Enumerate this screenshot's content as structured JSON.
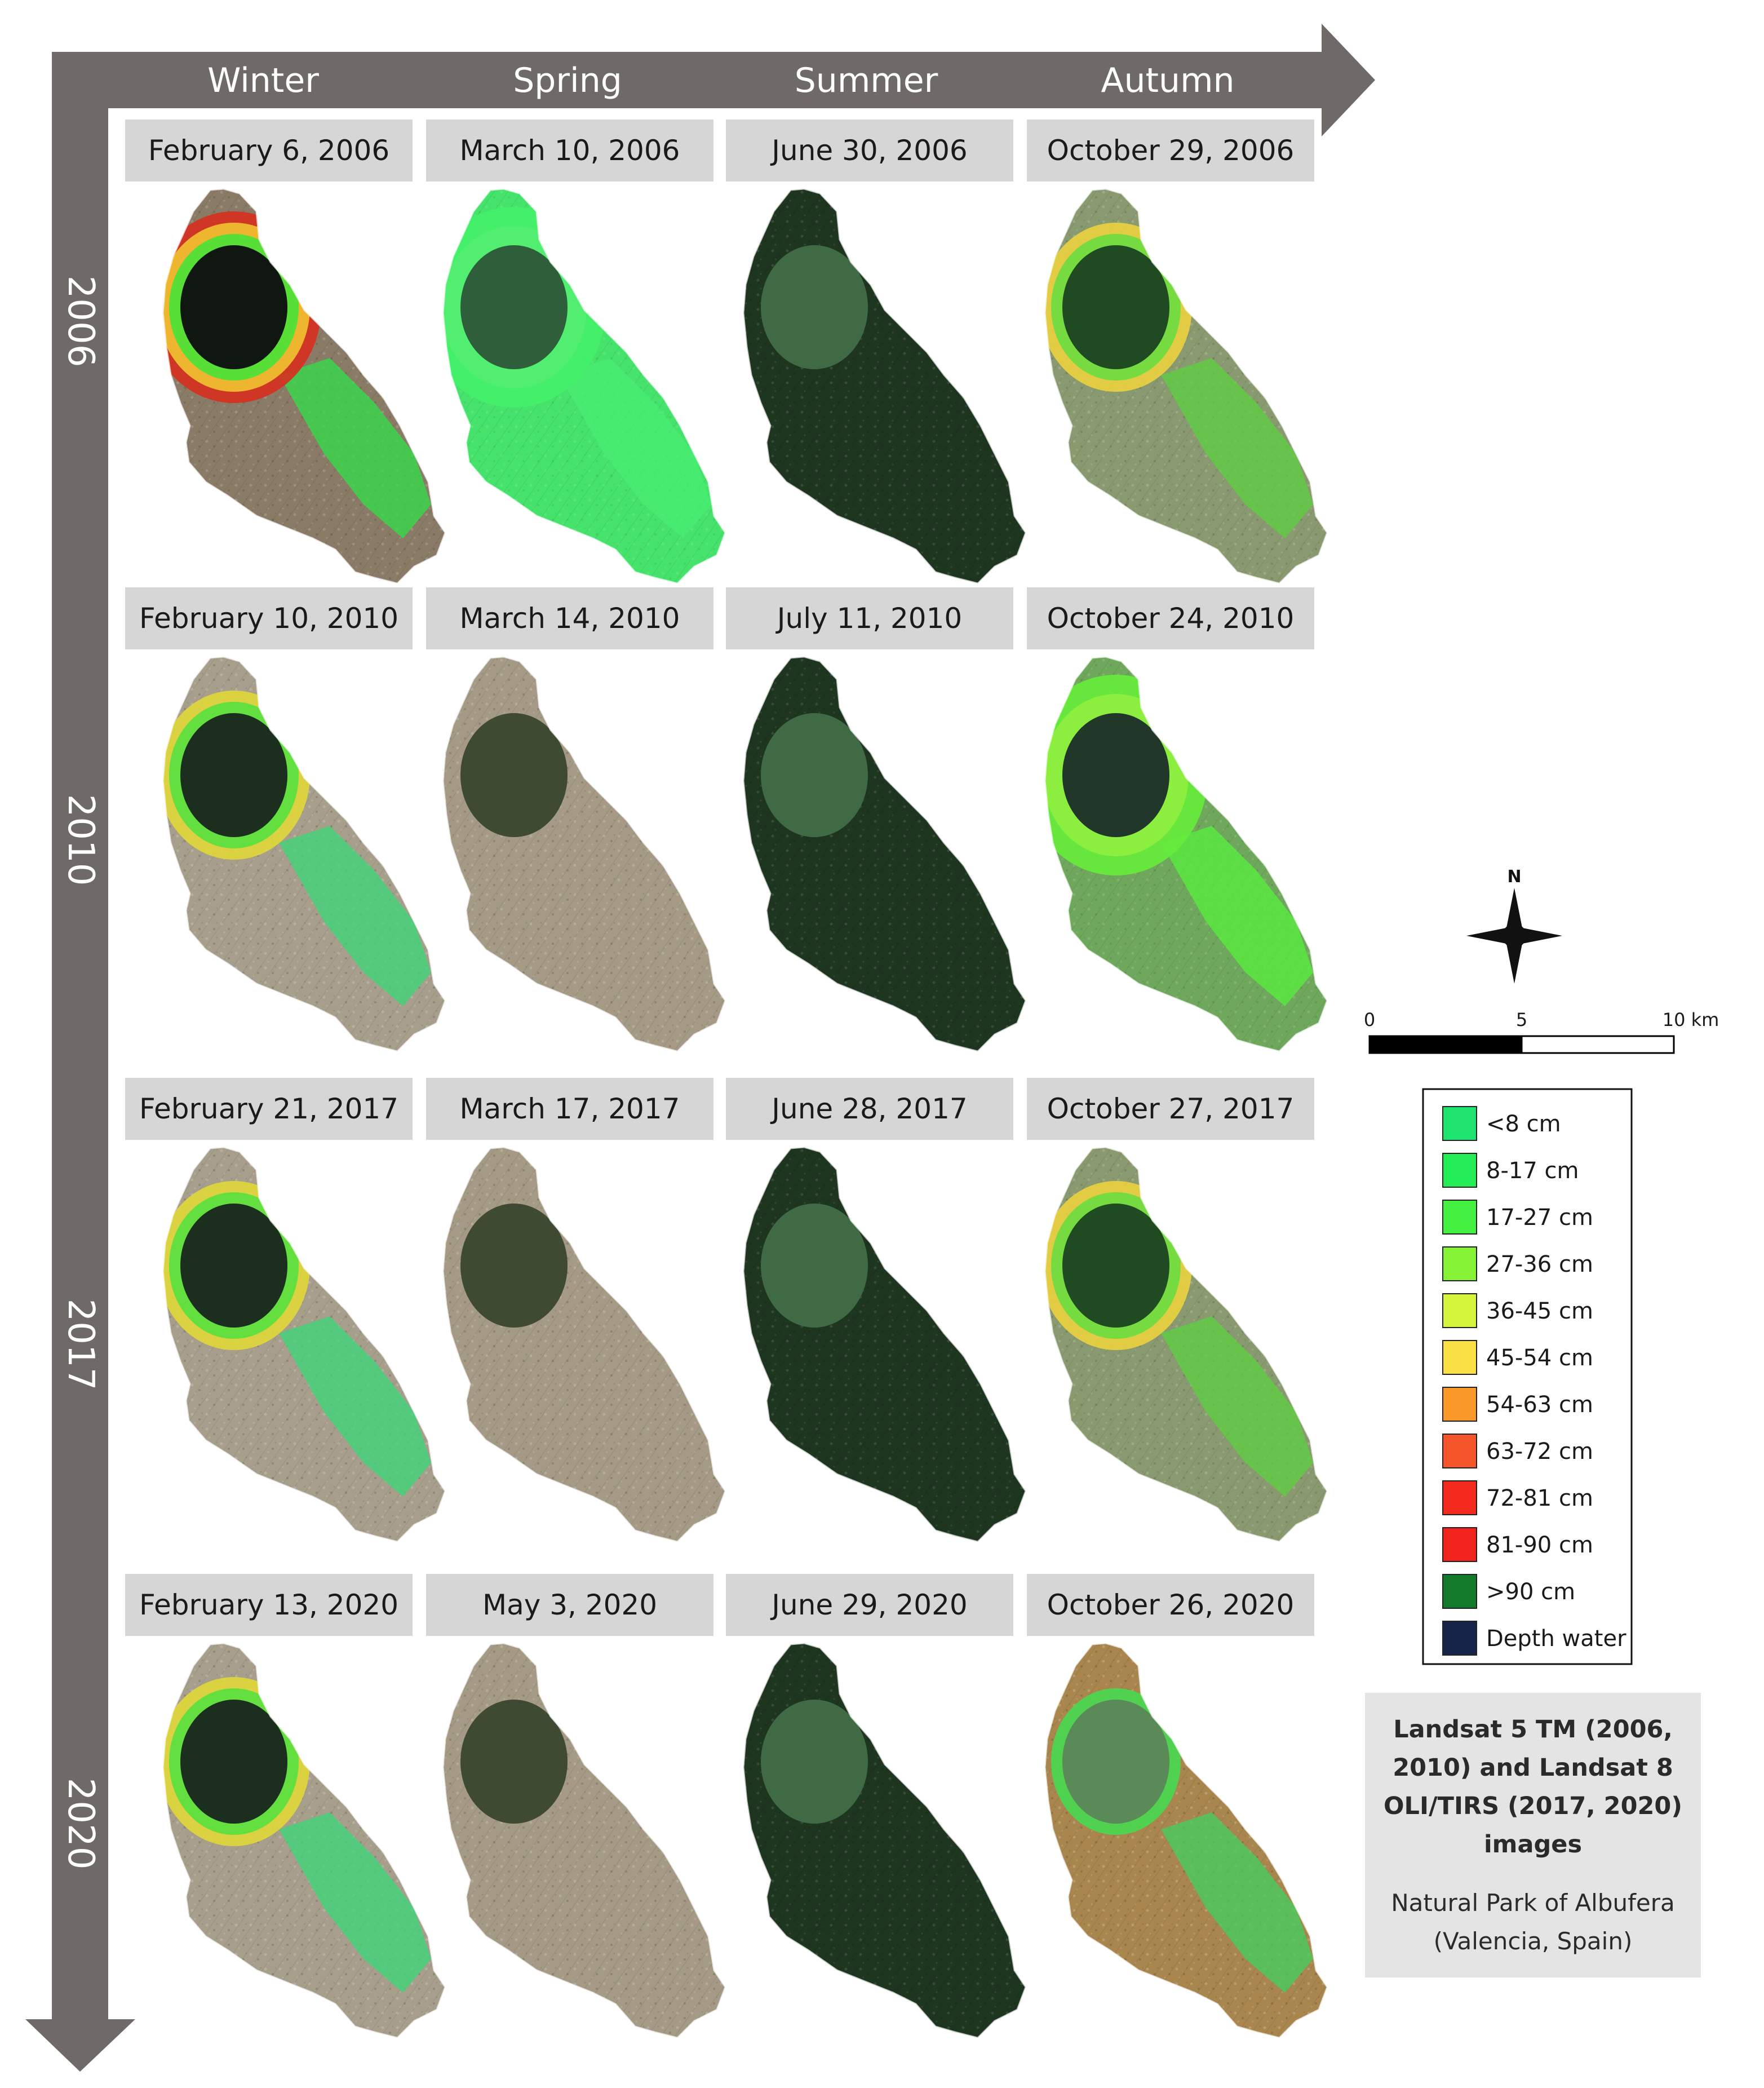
{
  "seasons": [
    "Winter",
    "Spring",
    "Summer",
    "Autumn"
  ],
  "years": [
    "2006",
    "2010",
    "2017",
    "2020"
  ],
  "panels": [
    [
      {
        "date": "February 6, 2006",
        "scene": "flooded-winter"
      },
      {
        "date": "March 10, 2006",
        "scene": "flooded-spring"
      },
      {
        "date": "June 30, 2006",
        "scene": "summer-crop"
      },
      {
        "date": "October 29, 2006",
        "scene": "autumn-partial"
      }
    ],
    [
      {
        "date": "February 10, 2010",
        "scene": "partial-dry"
      },
      {
        "date": "March 14, 2010",
        "scene": "dry"
      },
      {
        "date": "July 11, 2010",
        "scene": "summer-crop"
      },
      {
        "date": "October 24, 2010",
        "scene": "autumn-flooded"
      }
    ],
    [
      {
        "date": "February 21, 2017",
        "scene": "partial-dry"
      },
      {
        "date": "March 17, 2017",
        "scene": "dry"
      },
      {
        "date": "June 28, 2017",
        "scene": "summer-crop"
      },
      {
        "date": "October 27, 2017",
        "scene": "autumn-partial"
      }
    ],
    [
      {
        "date": "February 13, 2020",
        "scene": "partial-dry"
      },
      {
        "date": "May 3, 2020",
        "scene": "dry"
      },
      {
        "date": "June 29, 2020",
        "scene": "summer-crop"
      },
      {
        "date": "October 26, 2020",
        "scene": "autumn-brown"
      }
    ]
  ],
  "legend": [
    {
      "label": "<8 cm",
      "color": "#1ee36e"
    },
    {
      "label": "8-17 cm",
      "color": "#22ec56"
    },
    {
      "label": "17-27 cm",
      "color": "#44f040"
    },
    {
      "label": "27-36 cm",
      "color": "#86f236"
    },
    {
      "label": "36-45 cm",
      "color": "#d4f53c"
    },
    {
      "label": "45-54 cm",
      "color": "#fbe044"
    },
    {
      "label": "54-63 cm",
      "color": "#f8992a"
    },
    {
      "label": "63-72 cm",
      "color": "#f6542a"
    },
    {
      "label": "72-81 cm",
      "color": "#f52a1e"
    },
    {
      "label": "81-90 cm",
      "color": "#f0241c"
    },
    {
      "label": ">90 cm",
      "color": "#127a2a"
    },
    {
      "label": "Depth water",
      "color": "#16244a"
    }
  ],
  "north_label": "N",
  "scale_bar": {
    "labels": [
      "0",
      "5",
      "10 km"
    ]
  },
  "info": {
    "title_lines": [
      "Landsat 5 TM (2006,",
      "2010) and Landsat 8",
      "OLI/TIRS (2017, 2020)",
      "images"
    ],
    "subtitle_lines": [
      "Natural Park of Albufera",
      "(Valencia, Spain)"
    ]
  },
  "colors": {
    "arrow": "#6f6a68",
    "date_box": "#d6d6d6",
    "info_box": "#e4e4e4"
  }
}
